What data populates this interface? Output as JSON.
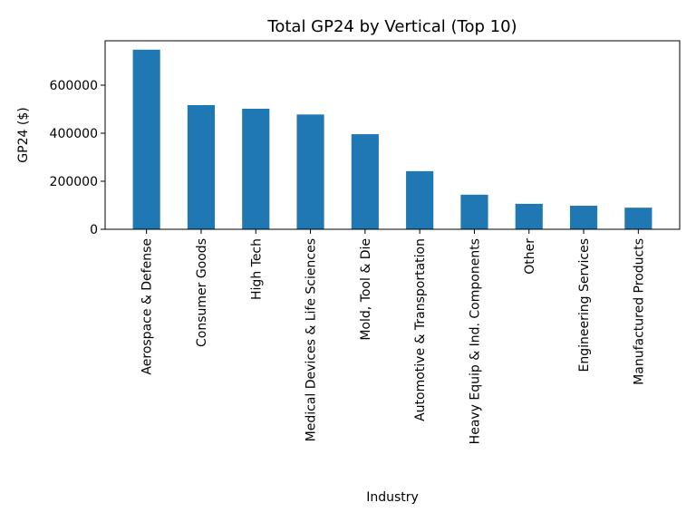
{
  "chart_data": {
    "type": "bar",
    "title": "Total GP24 by Vertical (Top 10)",
    "xlabel": "Industry",
    "ylabel": "GP24 ($)",
    "categories": [
      "Aerospace & Defense",
      "Consumer Goods",
      "High Tech",
      "Medical Devices & Life Sciences",
      "Mold, Tool & Die",
      "Automotive & Transportation",
      "Heavy Equip & Ind. Components",
      "Other",
      "Engineering Services",
      "Manufactured Products"
    ],
    "values": [
      748000,
      517000,
      502000,
      478000,
      396000,
      242000,
      144000,
      106000,
      98000,
      90000
    ],
    "ylim": [
      0,
      785000
    ],
    "yticks": [
      0,
      200000,
      400000,
      600000
    ],
    "ytick_labels": [
      "0",
      "200000",
      "400000",
      "600000"
    ],
    "bar_color": "#1f77b4",
    "grid": false,
    "legend": "none"
  }
}
